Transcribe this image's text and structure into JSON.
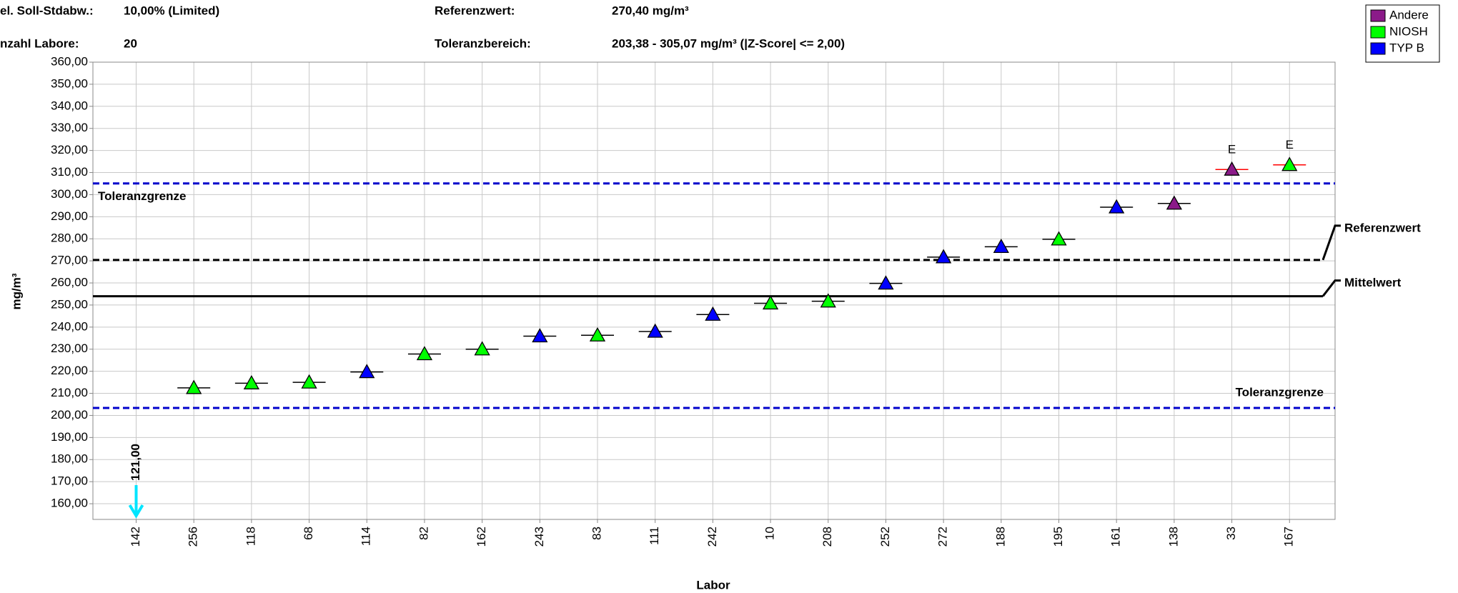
{
  "header": {
    "rows": [
      [
        {
          "label": "el. Soll-Stdabw.:",
          "value": "10,00% (Limited)"
        },
        {
          "label": "Referenzwert:",
          "value": "270,40 mg/m³"
        }
      ],
      [
        {
          "label": "nzahl Labore:",
          "value": "20"
        },
        {
          "label": "Toleranzbereich:",
          "value": "203,38 - 305,07 mg/m³ (|Z-Score| <= 2,00)"
        }
      ]
    ]
  },
  "chart_data": {
    "type": "scatter",
    "x_label": "Labor",
    "y_label": "mg/m³",
    "categories": [
      "142",
      "256",
      "118",
      "68",
      "114",
      "82",
      "162",
      "243",
      "83",
      "111",
      "242",
      "10",
      "208",
      "252",
      "272",
      "188",
      "195",
      "161",
      "138",
      "33",
      "167"
    ],
    "series": [
      {
        "name": "Andere",
        "color": "#8b1a89",
        "values": [
          null,
          null,
          null,
          null,
          null,
          null,
          null,
          null,
          null,
          null,
          null,
          null,
          null,
          null,
          null,
          null,
          null,
          null,
          296,
          311.4,
          null
        ]
      },
      {
        "name": "NIOSH",
        "color": "#00ff00",
        "values": [
          null,
          212.5,
          214.6,
          215,
          null,
          227.8,
          230,
          null,
          236.3,
          null,
          null,
          250.8,
          251.7,
          null,
          null,
          null,
          279.8,
          null,
          null,
          null,
          313.5
        ]
      },
      {
        "name": "TYP B",
        "color": "#0000ff",
        "values": [
          null,
          null,
          null,
          null,
          219.7,
          null,
          null,
          235.9,
          null,
          238,
          245.7,
          null,
          null,
          259.8,
          271.7,
          276.4,
          null,
          294.3,
          null,
          null,
          null
        ]
      }
    ],
    "below_range": {
      "color": "#00e5ff",
      "values": [
        121,
        null,
        null,
        null,
        null,
        null,
        null,
        null,
        null,
        null,
        null,
        null,
        null,
        null,
        null,
        null,
        null,
        null,
        null,
        null,
        null
      ],
      "value_labels": [
        "121,00",
        null,
        null,
        null,
        null,
        null,
        null,
        null,
        null,
        null,
        null,
        null,
        null,
        null,
        null,
        null,
        null,
        null,
        null,
        null,
        null
      ]
    },
    "flags": [
      null,
      null,
      null,
      null,
      null,
      null,
      null,
      null,
      null,
      null,
      null,
      null,
      null,
      null,
      null,
      null,
      null,
      null,
      null,
      "E",
      "E"
    ],
    "flag_color": "#ff0000",
    "reference_lines": [
      {
        "label": "Toleranzgrenze",
        "value": 305.07,
        "color": "#0000cc",
        "style": "dashed",
        "label_position": "left"
      },
      {
        "label": "Referenzwert",
        "value": 270.4,
        "color": "#000000",
        "style": "dashed",
        "label_position": "outside"
      },
      {
        "label": "Mittelwert",
        "value": 254,
        "color": "#000000",
        "style": "solid",
        "label_position": "outside"
      },
      {
        "label": "Toleranzgrenze",
        "value": 203.38,
        "color": "#0000cc",
        "style": "dashed",
        "label_position": "right"
      }
    ],
    "ylim": [
      152.9,
      360
    ],
    "yticks": [
      {
        "value": 160,
        "label": "160,00"
      },
      {
        "value": 170,
        "label": "170,00"
      },
      {
        "value": 180,
        "label": "180,00"
      },
      {
        "value": 190,
        "label": "190,00"
      },
      {
        "value": 200,
        "label": "200,00"
      },
      {
        "value": 210,
        "label": "210,00"
      },
      {
        "value": 220,
        "label": "220,00"
      },
      {
        "value": 230,
        "label": "230,00"
      },
      {
        "value": 240,
        "label": "240,00"
      },
      {
        "value": 250,
        "label": "250,00"
      },
      {
        "value": 260,
        "label": "260,00"
      },
      {
        "value": 270,
        "label": "270,00"
      },
      {
        "value": 280,
        "label": "280,00"
      },
      {
        "value": 290,
        "label": "290,00"
      },
      {
        "value": 300,
        "label": "300,00"
      },
      {
        "value": 310,
        "label": "310,00"
      },
      {
        "value": 320,
        "label": "320,00"
      },
      {
        "value": 330,
        "label": "330,00"
      },
      {
        "value": 340,
        "label": "340,00"
      },
      {
        "value": 350,
        "label": "350,00"
      },
      {
        "value": 360,
        "label": "360,00"
      }
    ],
    "grid": true,
    "legend": "top-right"
  }
}
